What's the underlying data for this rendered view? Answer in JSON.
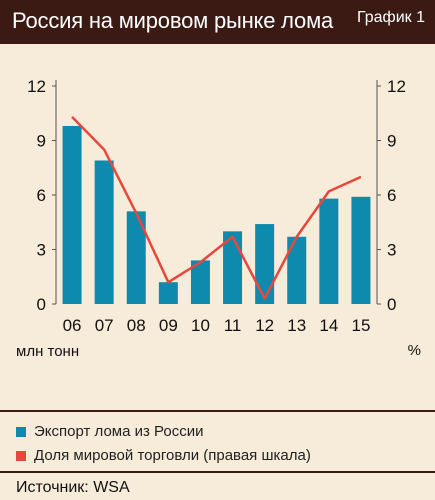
{
  "header": {
    "title": "Россия на мировом рынке лома",
    "tag": "График 1"
  },
  "chart_data": {
    "type": "bar",
    "categories": [
      "06",
      "07",
      "08",
      "09",
      "10",
      "11",
      "12",
      "13",
      "14",
      "15"
    ],
    "series": [
      {
        "name": "Экспорт лома из России",
        "type": "bar",
        "axis": "left",
        "values": [
          9.8,
          7.9,
          5.1,
          1.2,
          2.4,
          4.0,
          4.4,
          3.7,
          5.8,
          5.9
        ]
      },
      {
        "name": "Доля мировой торговли (правая шкала)",
        "type": "line",
        "axis": "right",
        "values": [
          10.3,
          8.5,
          5.0,
          1.2,
          2.3,
          3.7,
          0.3,
          3.7,
          6.2,
          7.0
        ]
      }
    ],
    "ylabel": "млн тонн",
    "ylabel_right": "%",
    "ylim": [
      0,
      12
    ],
    "ylim_right": [
      0,
      12
    ],
    "yticks": [
      "0",
      "3",
      "6",
      "9",
      "12"
    ],
    "grid": false,
    "legend": "bottom"
  },
  "colors": {
    "bar": "#0e8aae",
    "line": "#e8473d",
    "header_bg": "#3b1a14",
    "background": "#f6ecd9"
  },
  "legend": [
    {
      "label": "Экспорт лома из России",
      "color": "#0e8aae"
    },
    {
      "label": "Доля мировой торговли (правая шкала)",
      "color": "#e8473d"
    }
  ],
  "source": "Источник: WSA"
}
